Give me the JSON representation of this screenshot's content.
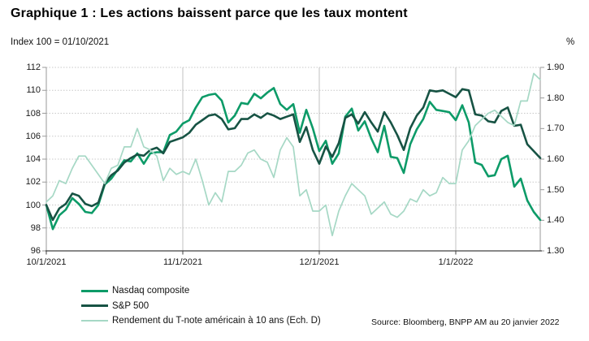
{
  "header": {
    "title": "Graphique 1 : Les actions baissent parce que les taux montent",
    "axis_note_left": "Index 100 = 01/10/2021",
    "axis_note_right": "%"
  },
  "source": "Source: Bloomberg, BNPP AM au 20 janvier 2022",
  "chart_data": {
    "type": "line",
    "title": "Graphique 1 : Les actions baissent parce que les taux montent",
    "left_axis": {
      "label": "Index 100 = 01/10/2021",
      "min": 96,
      "max": 112,
      "ticks": [
        112,
        110,
        108,
        106,
        104,
        102,
        100,
        98,
        96
      ]
    },
    "right_axis": {
      "label": "%",
      "min": 1.3,
      "max": 1.9,
      "ticks": [
        "1.90",
        "1.80",
        "1.70",
        "1.60",
        "1.50",
        "1.40",
        "1.30"
      ]
    },
    "x_ticks": [
      {
        "label": "10/1/2021",
        "index": 0
      },
      {
        "label": "11/1/2021",
        "index": 21
      },
      {
        "label": "12/1/2021",
        "index": 42
      },
      {
        "label": "1/1/2022",
        "index": 63
      }
    ],
    "grid": {
      "horizontal": true,
      "vertical_on_months": true
    },
    "legend_position": "bottom-left",
    "dates": [
      "2021-10-01",
      "2021-10-04",
      "2021-10-05",
      "2021-10-06",
      "2021-10-07",
      "2021-10-08",
      "2021-10-11",
      "2021-10-12",
      "2021-10-13",
      "2021-10-14",
      "2021-10-15",
      "2021-10-18",
      "2021-10-19",
      "2021-10-20",
      "2021-10-21",
      "2021-10-22",
      "2021-10-25",
      "2021-10-26",
      "2021-10-27",
      "2021-10-28",
      "2021-10-29",
      "2021-11-01",
      "2021-11-02",
      "2021-11-03",
      "2021-11-04",
      "2021-11-05",
      "2021-11-08",
      "2021-11-09",
      "2021-11-10",
      "2021-11-11",
      "2021-11-12",
      "2021-11-15",
      "2021-11-16",
      "2021-11-17",
      "2021-11-18",
      "2021-11-19",
      "2021-11-22",
      "2021-11-23",
      "2021-11-24",
      "2021-11-26",
      "2021-11-29",
      "2021-11-30",
      "2021-12-01",
      "2021-12-02",
      "2021-12-03",
      "2021-12-06",
      "2021-12-07",
      "2021-12-08",
      "2021-12-09",
      "2021-12-10",
      "2021-12-13",
      "2021-12-14",
      "2021-12-15",
      "2021-12-16",
      "2021-12-17",
      "2021-12-20",
      "2021-12-21",
      "2021-12-22",
      "2021-12-23",
      "2021-12-27",
      "2021-12-28",
      "2021-12-29",
      "2021-12-30",
      "2021-12-31",
      "2022-01-03",
      "2022-01-04",
      "2022-01-05",
      "2022-01-06",
      "2022-01-07",
      "2022-01-10",
      "2022-01-11",
      "2022-01-12",
      "2022-01-13",
      "2022-01-14",
      "2022-01-18",
      "2022-01-19",
      "2022-01-20"
    ],
    "series": [
      {
        "name": "Nasdaq composite",
        "axis": "left",
        "color": "#0d9b68",
        "width": 2.6,
        "values": [
          100.0,
          97.9,
          99.1,
          99.6,
          100.6,
          100.1,
          99.4,
          99.3,
          100.0,
          101.8,
          102.3,
          103.1,
          103.9,
          103.8,
          104.5,
          103.6,
          104.5,
          104.6,
          104.6,
          106.1,
          106.4,
          107.1,
          107.4,
          108.5,
          109.4,
          109.6,
          109.7,
          109.1,
          107.2,
          107.8,
          108.9,
          108.8,
          109.7,
          109.3,
          109.8,
          110.2,
          108.8,
          108.3,
          108.8,
          106.3,
          108.3,
          106.7,
          104.7,
          105.6,
          103.6,
          104.5,
          107.7,
          108.4,
          106.5,
          107.3,
          105.8,
          104.6,
          106.9,
          104.2,
          104.1,
          102.8,
          105.3,
          106.6,
          107.5,
          109.0,
          108.3,
          108.2,
          108.1,
          107.4,
          108.7,
          107.2,
          103.7,
          103.5,
          102.5,
          102.6,
          104.0,
          104.3,
          101.6,
          102.3,
          100.4,
          99.4,
          98.7
        ]
      },
      {
        "name": "S&P 500",
        "axis": "left",
        "color": "#175344",
        "width": 2.6,
        "values": [
          100.0,
          98.7,
          99.7,
          100.1,
          101.0,
          100.8,
          100.1,
          99.9,
          100.2,
          101.9,
          102.6,
          103.0,
          103.7,
          104.1,
          104.4,
          104.3,
          104.8,
          105.0,
          104.5,
          105.5,
          105.7,
          105.9,
          106.3,
          107.0,
          107.4,
          107.8,
          107.9,
          107.5,
          106.6,
          106.7,
          107.5,
          107.5,
          107.9,
          107.6,
          108.0,
          107.8,
          107.5,
          107.7,
          107.9,
          105.5,
          106.8,
          104.8,
          103.6,
          105.1,
          104.2,
          105.4,
          107.6,
          107.9,
          107.1,
          108.1,
          107.2,
          106.4,
          108.1,
          107.2,
          106.1,
          104.8,
          106.7,
          107.8,
          108.5,
          110.0,
          109.9,
          110.0,
          109.7,
          109.4,
          110.1,
          110.0,
          107.9,
          107.8,
          107.3,
          107.2,
          108.2,
          108.5,
          106.9,
          107.0,
          105.3,
          104.7,
          104.1
        ]
      },
      {
        "name": "Rendement du T-note américain à 10 ans (Ech. D)",
        "axis": "right",
        "color": "#a6d8c5",
        "width": 1.7,
        "values": [
          1.46,
          1.48,
          1.53,
          1.52,
          1.57,
          1.61,
          1.61,
          1.58,
          1.55,
          1.52,
          1.57,
          1.58,
          1.64,
          1.64,
          1.7,
          1.64,
          1.63,
          1.61,
          1.53,
          1.57,
          1.55,
          1.56,
          1.55,
          1.6,
          1.53,
          1.45,
          1.49,
          1.46,
          1.56,
          1.56,
          1.58,
          1.62,
          1.63,
          1.6,
          1.59,
          1.54,
          1.63,
          1.67,
          1.64,
          1.48,
          1.5,
          1.43,
          1.43,
          1.45,
          1.35,
          1.43,
          1.48,
          1.52,
          1.5,
          1.48,
          1.42,
          1.44,
          1.46,
          1.42,
          1.41,
          1.43,
          1.47,
          1.46,
          1.5,
          1.48,
          1.49,
          1.54,
          1.52,
          1.52,
          1.63,
          1.66,
          1.71,
          1.73,
          1.75,
          1.76,
          1.74,
          1.72,
          1.71,
          1.79,
          1.79,
          1.88,
          1.86
        ]
      }
    ],
    "colors": {
      "grid": "#c8c8c8",
      "month_grid": "#c0c0c0",
      "axis_side": "#9a9a9a",
      "axis_bottom": "#404040"
    }
  }
}
